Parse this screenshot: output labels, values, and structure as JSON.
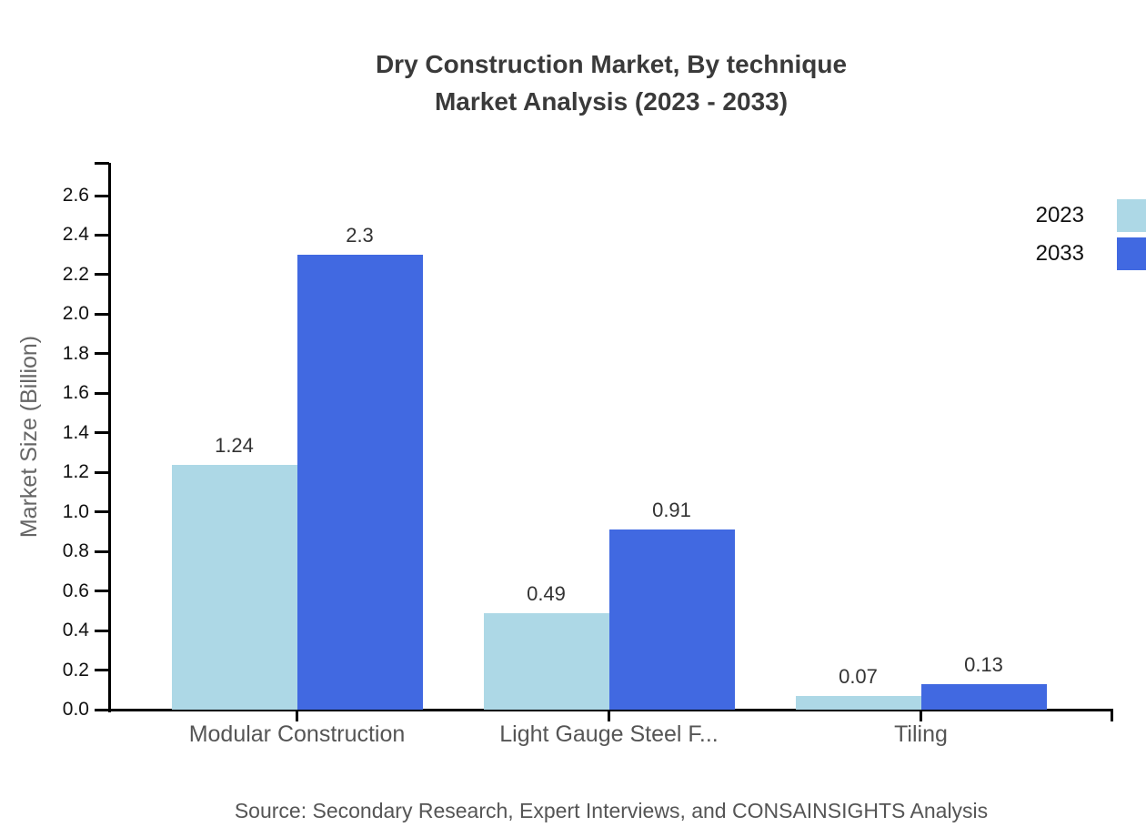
{
  "title": {
    "line1": "Dry Construction Market, By technique",
    "line2": "Market Analysis (2023 - 2033)"
  },
  "source": "Source: Secondary Research, Expert Interviews, and CONSAINSIGHTS Analysis",
  "chart_data": {
    "type": "bar",
    "title": "Dry Construction Market, By technique Market Analysis (2023 - 2033)",
    "categories": [
      "Modular Construction",
      "Light Gauge Steel F...",
      "Tiling"
    ],
    "series": [
      {
        "name": "2023",
        "color": "#ADD8E6",
        "values": [
          1.24,
          0.49,
          0.07
        ],
        "labels": [
          "1.24",
          "0.49",
          "0.07"
        ]
      },
      {
        "name": "2033",
        "color": "#4169E1",
        "values": [
          2.3,
          0.91,
          0.13
        ],
        "labels": [
          "2.3",
          "0.91",
          "0.13"
        ]
      }
    ],
    "xlabel": "",
    "ylabel": "Market Size (Billion)",
    "ylim": [
      0,
      2.6
    ],
    "yticks": [
      "0.0",
      "0.2",
      "0.4",
      "0.6",
      "0.8",
      "1.0",
      "1.2",
      "1.4",
      "1.6",
      "1.8",
      "2.0",
      "2.2",
      "2.4",
      "2.6"
    ],
    "grid": false,
    "legend_position": "top-right",
    "axis_color": "#000000"
  }
}
